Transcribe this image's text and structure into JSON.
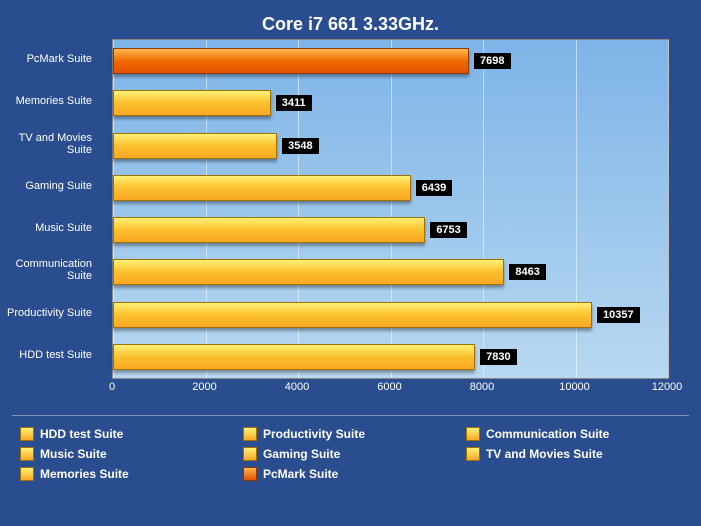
{
  "chart": {
    "title": "Core i7 661 3.33GHz.",
    "type": "bar-horizontal",
    "background_color": "#2a4d8f",
    "plot_gradient_top": "#7db4e8",
    "plot_gradient_bottom": "#b8d8f0",
    "xlim_min": 0,
    "xlim_max": 12000,
    "xtick_step": 2000,
    "xticks": [
      0,
      2000,
      4000,
      6000,
      8000,
      10000,
      12000
    ],
    "bar_color_yellow_top": "#fff176",
    "bar_color_yellow_mid": "#fbc02d",
    "bar_color_yellow_bot": "#f9a825",
    "bar_color_orange_top": "#ffb74d",
    "bar_color_orange_mid": "#ef6c00",
    "bar_color_orange_bot": "#e65100",
    "grid_color": "rgba(255,255,255,0.5)",
    "label_bg": "#000000",
    "label_fg": "#ffffff",
    "title_fontsize": 18,
    "axis_fontsize": 11,
    "series": [
      {
        "name": "PcMark Suite",
        "value": 7698,
        "color": "orange"
      },
      {
        "name": "Memories Suite",
        "value": 3411,
        "color": "yellow"
      },
      {
        "name": "TV and Movies Suite",
        "value": 3548,
        "color": "yellow"
      },
      {
        "name": "Gaming Suite",
        "value": 6439,
        "color": "yellow"
      },
      {
        "name": "Music Suite",
        "value": 6753,
        "color": "yellow"
      },
      {
        "name": "Communication Suite",
        "value": 8463,
        "color": "yellow"
      },
      {
        "name": "Productivity Suite",
        "value": 10357,
        "color": "yellow"
      },
      {
        "name": "HDD test Suite",
        "value": 7830,
        "color": "yellow"
      }
    ],
    "legend": [
      {
        "label": "HDD test Suite",
        "color": "yellow"
      },
      {
        "label": "Productivity Suite",
        "color": "yellow"
      },
      {
        "label": "Communication Suite",
        "color": "yellow"
      },
      {
        "label": "Music Suite",
        "color": "yellow"
      },
      {
        "label": "Gaming Suite",
        "color": "yellow"
      },
      {
        "label": "TV and Movies Suite",
        "color": "yellow"
      },
      {
        "label": "Memories Suite",
        "color": "yellow"
      },
      {
        "label": "PcMark Suite",
        "color": "orange"
      }
    ]
  }
}
